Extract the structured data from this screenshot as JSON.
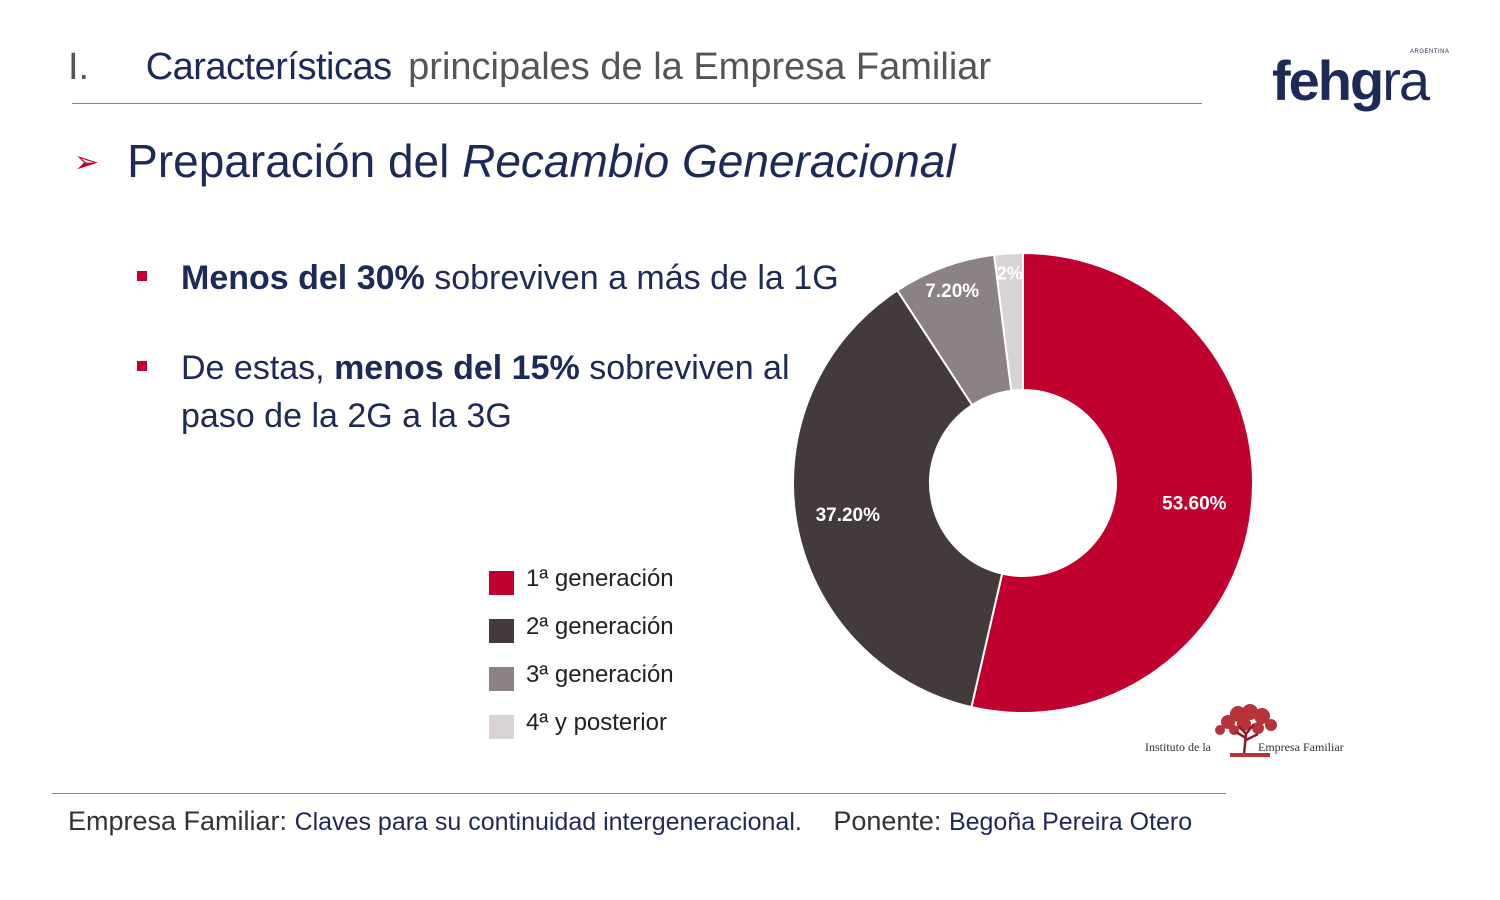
{
  "header": {
    "number": "I.",
    "strong": "Características",
    "rest": "principales de la Empresa Familiar"
  },
  "logo": {
    "main": "fehg",
    "tail": "ra",
    "tag": "ARGENTINA"
  },
  "title": {
    "plain": "Preparación del",
    "italic": "Recambio Generacional"
  },
  "bullets": [
    {
      "bold": "Menos del 30%",
      "after": "sobreviven a más de la 1G"
    },
    {
      "before": "De estas,",
      "bold": "menos del 15%",
      "after": "sobreviven al",
      "line2": "paso de la 2G a la 3G"
    }
  ],
  "chart_data": {
    "type": "pie",
    "donut": true,
    "categories": [
      "1ª generación",
      "2ª generación",
      "3ª generación",
      "4ª y posterior"
    ],
    "values": [
      53.6,
      37.2,
      7.2,
      2
    ],
    "labels": [
      "53.60%",
      "37.20%",
      "7.20%",
      "2%"
    ],
    "colors": [
      "#c0002f",
      "#423a3b",
      "#8a8283",
      "#d9d3d4"
    ],
    "legend_position": "left"
  },
  "institute": {
    "part1": "Instituto de la",
    "part2": "Empresa Familiar"
  },
  "footer": {
    "a": "Empresa Familiar:",
    "b": "Claves para su continuidad intergeneracional.",
    "c": "Ponente:",
    "d": "Begoña Pereira Otero"
  }
}
